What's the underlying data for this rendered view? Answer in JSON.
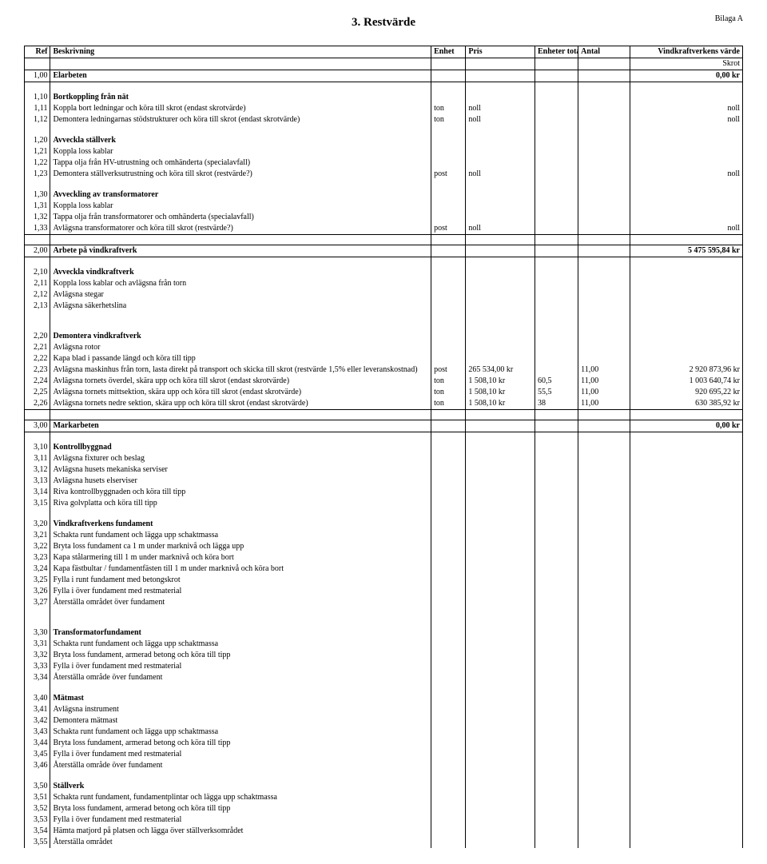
{
  "doc": {
    "title": "3. Restvärde",
    "bilaga": "Bilaga A"
  },
  "header": {
    "ref": "Ref",
    "beskrivning": "Beskrivning",
    "enhet": "Enhet",
    "pris": "Pris",
    "enheter_totalt": "Enheter totalt",
    "antal": "Antal",
    "varde": "Vindkraftverkens värde",
    "skrot": "Skrot"
  },
  "rows": [
    {
      "ref": "1,00",
      "desc": "Elarbeten",
      "bold": true,
      "enhet": "",
      "pris": "",
      "et": "",
      "antal": "",
      "varde": "0,00 kr",
      "vbold": true,
      "top": true,
      "bottom": true
    },
    {
      "empty": true
    },
    {
      "ref": "1,10",
      "desc": "Bortkoppling från nät",
      "bold": true
    },
    {
      "ref": "1,11",
      "desc": "Koppla bort ledningar och köra till skrot (endast skrotvärde)",
      "enhet": "ton",
      "pris": "noll",
      "varde": "noll"
    },
    {
      "ref": "1,12",
      "desc": "Demontera ledningarnas stödstrukturer och köra till skrot (endast skrotvärde)",
      "enhet": "ton",
      "pris": "noll",
      "varde": "noll"
    },
    {
      "empty": true
    },
    {
      "ref": "1,20",
      "desc": "Avveckla ställverk",
      "bold": true
    },
    {
      "ref": "1,21",
      "desc": "Koppla loss kablar"
    },
    {
      "ref": "1,22",
      "desc": "Tappa olja från HV-utrustning och omhänderta (specialavfall)"
    },
    {
      "ref": "1,23",
      "desc": "Demontera ställverksutrustning och köra till skrot (restvärde?)",
      "enhet": "post",
      "pris": "noll",
      "varde": "noll"
    },
    {
      "empty": true
    },
    {
      "ref": "1,30",
      "desc": "Avveckling av transformatorer",
      "bold": true
    },
    {
      "ref": "1,31",
      "desc": "Koppla loss kablar"
    },
    {
      "ref": "1,32",
      "desc": "Tappa olja från transformatorer och omhänderta (specialavfall)"
    },
    {
      "ref": "1,33",
      "desc": "Avlägsna transformatorer och köra till skrot (restvärde?)",
      "enhet": "post",
      "pris": "noll",
      "varde": "noll",
      "bottom": true
    },
    {
      "empty": true,
      "bottom": true
    },
    {
      "ref": "2,00",
      "desc": "Arbete på vindkraftverk",
      "bold": true,
      "varde": "5 475 595,84 kr",
      "vbold": true,
      "top": true,
      "bottom": true
    },
    {
      "empty": true
    },
    {
      "ref": "2,10",
      "desc": "Avveckla vindkraftverk",
      "bold": true
    },
    {
      "ref": "2,11",
      "desc": "Koppla loss kablar och avlägsna från torn"
    },
    {
      "ref": "2,12",
      "desc": "Avlägsna stegar"
    },
    {
      "ref": "2,13",
      "desc": "Avlägsna säkerhetslina"
    },
    {
      "empty": true
    },
    {
      "empty": true
    },
    {
      "ref": "2,20",
      "desc": "Demontera vindkraftverk",
      "bold": true
    },
    {
      "ref": "2,21",
      "desc": "Avlägsna rotor"
    },
    {
      "ref": "2,22",
      "desc": "Kapa blad i passande längd och köra till tipp"
    },
    {
      "ref": "2,23",
      "desc": "Avlägsna maskinhus från torn, lasta direkt på transport och skicka till skrot (restvärde 1,5% eller leveranskostnad)",
      "enhet": "post",
      "pris": "265 534,00 kr",
      "et": "",
      "antal": "11,00",
      "varde": "2 920 873,96 kr"
    },
    {
      "ref": "2,24",
      "desc": "Avlägsna tornets överdel, skära upp och köra till skrot (endast skrotvärde)",
      "enhet": "ton",
      "pris": "1 508,10 kr",
      "et": "60,5",
      "antal": "11,00",
      "varde": "1 003 640,74 kr"
    },
    {
      "ref": "2,25",
      "desc": "Avlägsna tornets mittsektion, skära upp och köra till skrot (endast skrotvärde)",
      "enhet": "ton",
      "pris": "1 508,10 kr",
      "et": "55,5",
      "antal": "11,00",
      "varde": "920 695,22 kr"
    },
    {
      "ref": "2,26",
      "desc": "Avlägsna tornets nedre sektion, skära upp och köra till skrot (endast skrotvärde)",
      "enhet": "ton",
      "pris": "1 508,10 kr",
      "et": "38",
      "antal": "11,00",
      "varde": "630 385,92 kr",
      "bottom": true
    },
    {
      "empty": true,
      "bottom": true
    },
    {
      "ref": "3,00",
      "desc": "Markarbeten",
      "bold": true,
      "varde": "0,00 kr",
      "vbold": true,
      "top": true,
      "bottom": true
    },
    {
      "empty": true
    },
    {
      "ref": "3,10",
      "desc": "Kontrollbyggnad",
      "bold": true
    },
    {
      "ref": "3,11",
      "desc": "Avlägsna fixturer och beslag"
    },
    {
      "ref": "3,12",
      "desc": "Avlägsna husets mekaniska serviser"
    },
    {
      "ref": "3,13",
      "desc": "Avlägsna husets elserviser"
    },
    {
      "ref": "3,14",
      "desc": "Riva kontrollbyggnaden och köra till tipp"
    },
    {
      "ref": "3,15",
      "desc": "Riva golvplatta och köra till tipp"
    },
    {
      "empty": true
    },
    {
      "ref": "3,20",
      "desc": "Vindkraftverkens fundament",
      "bold": true
    },
    {
      "ref": "3,21",
      "desc": "Schakta runt fundament och lägga upp schaktmassa"
    },
    {
      "ref": "3,22",
      "desc": "Bryta loss fundament ca 1 m under marknivå och lägga upp"
    },
    {
      "ref": "3,23",
      "desc": "Kapa stålarmering till 1 m under marknivå och köra bort"
    },
    {
      "ref": "3,24",
      "desc": "Kapa fästbultar / fundamentfästen till 1 m under marknivå och köra bort"
    },
    {
      "ref": "3,25",
      "desc": "Fylla i runt fundament med betongskrot"
    },
    {
      "ref": "3,26",
      "desc": "Fylla i över fundament med restmaterial"
    },
    {
      "ref": "3,27",
      "desc": "Återställa området över fundament"
    },
    {
      "empty": true
    },
    {
      "empty": true
    },
    {
      "ref": "3,30",
      "desc": "Transformatorfundament",
      "bold": true
    },
    {
      "ref": "3,31",
      "desc": "Schakta runt fundament och lägga upp schaktmassa"
    },
    {
      "ref": "3,32",
      "desc": "Bryta loss fundament, armerad betong och köra till tipp"
    },
    {
      "ref": "3,33",
      "desc": "Fylla i över fundament med restmaterial"
    },
    {
      "ref": "3,34",
      "desc": "Återställa område över fundament"
    },
    {
      "empty": true
    },
    {
      "ref": "3,40",
      "desc": "Mätmast",
      "bold": true
    },
    {
      "ref": "3,41",
      "desc": "Avlägsna instrument"
    },
    {
      "ref": "3,42",
      "desc": "Demontera mätmast"
    },
    {
      "ref": "3,43",
      "desc": "Schakta runt fundament och lägga upp schaktmassa"
    },
    {
      "ref": "3,44",
      "desc": "Bryta loss fundament, armerad betong och köra till tipp"
    },
    {
      "ref": "3,45",
      "desc": "Fylla i över fundament med restmaterial"
    },
    {
      "ref": "3,46",
      "desc": "Återställa område över fundament"
    },
    {
      "empty": true
    },
    {
      "ref": "3,50",
      "desc": "Ställverk",
      "bold": true
    },
    {
      "ref": "3,51",
      "desc": "Schakta runt fundament, fundamentplintar och lägga upp schaktmassa"
    },
    {
      "ref": "3,52",
      "desc": "Bryta loss fundament, armerad betong och köra till tipp"
    },
    {
      "ref": "3,53",
      "desc": "Fylla i över fundament med restmaterial"
    },
    {
      "ref": "3,54",
      "desc": "Hämta matjord på platsen och lägga över ställverksområdet"
    },
    {
      "ref": "3,55",
      "desc": "Återställa området"
    }
  ]
}
